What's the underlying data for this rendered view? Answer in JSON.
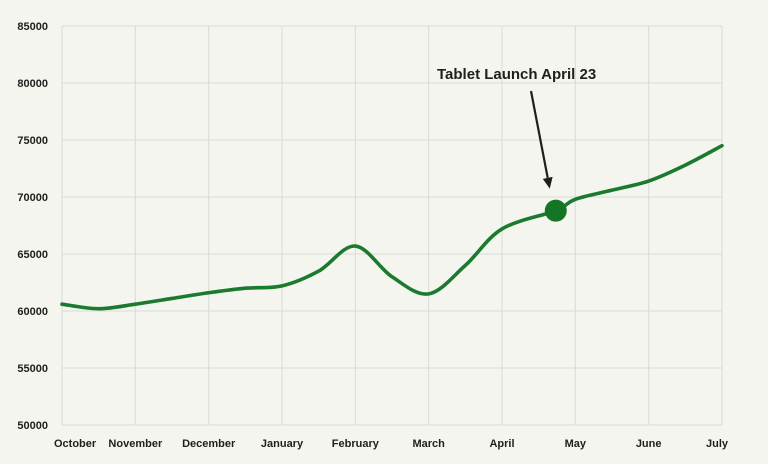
{
  "chart_data": {
    "type": "line",
    "title": "",
    "xlabel": "",
    "ylabel": "",
    "categories": [
      "October",
      "November",
      "December",
      "January",
      "February",
      "March",
      "April",
      "May",
      "June",
      "July"
    ],
    "y_ticks": [
      "85000",
      "80000",
      "75000",
      "70000",
      "65000",
      "60000",
      "55000",
      "50000"
    ],
    "ylim": [
      50000,
      85000
    ],
    "grid": true,
    "series": [
      {
        "values": [
          {
            "x": "October",
            "y": 60600
          },
          {
            "x": "mid-October",
            "y": 60200
          },
          {
            "x": "November",
            "y": 60600
          },
          {
            "x": "mid-November",
            "y": 61100
          },
          {
            "x": "December",
            "y": 61600
          },
          {
            "x": "mid-December",
            "y": 62000
          },
          {
            "x": "January",
            "y": 62200
          },
          {
            "x": "mid-January",
            "y": 63500
          },
          {
            "x": "February",
            "y": 65700
          },
          {
            "x": "mid-February",
            "y": 63000
          },
          {
            "x": "March",
            "y": 61500
          },
          {
            "x": "mid-March",
            "y": 64000
          },
          {
            "x": "April",
            "y": 67200
          },
          {
            "x": "April 23",
            "y": 68800
          },
          {
            "x": "May",
            "y": 69800
          },
          {
            "x": "mid-May",
            "y": 70600
          },
          {
            "x": "June",
            "y": 71400
          },
          {
            "x": "mid-June",
            "y": 72800
          },
          {
            "x": "July",
            "y": 74500
          }
        ],
        "color": "#1b7a2e"
      }
    ],
    "annotation": {
      "text": "Tablet Launch April 23",
      "x": "April 23",
      "y": 68800,
      "marker_color": "#147525"
    }
  }
}
